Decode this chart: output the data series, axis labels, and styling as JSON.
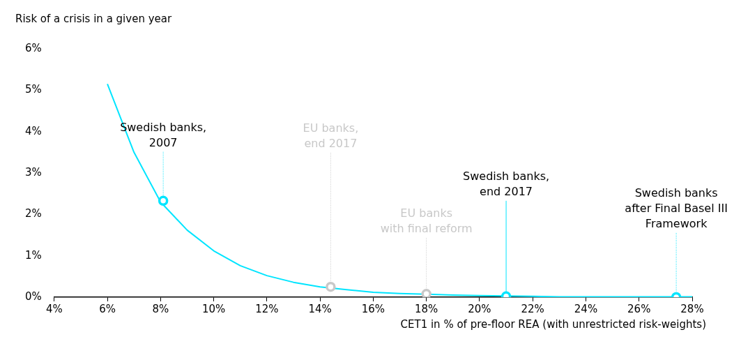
{
  "chart_data": {
    "type": "line",
    "ylabel": "Risk of a crisis in a given year",
    "xlabel": "CET1 in % of pre-floor REA (with unrestricted risk-weights)",
    "xlim": [
      4,
      28
    ],
    "xticks": [
      {
        "value": 4,
        "label": "4%"
      },
      {
        "value": 6,
        "label": "6%"
      },
      {
        "value": 8,
        "label": "8%"
      },
      {
        "value": 10,
        "label": "10%"
      },
      {
        "value": 12,
        "label": "12%"
      },
      {
        "value": 14,
        "label": "14%"
      },
      {
        "value": 16,
        "label": "16%"
      },
      {
        "value": 18,
        "label": "18%"
      },
      {
        "value": 20,
        "label": "20%"
      },
      {
        "value": 22,
        "label": "22%"
      },
      {
        "value": 24,
        "label": "24%"
      },
      {
        "value": 26,
        "label": "26%"
      },
      {
        "value": 28,
        "label": "28%"
      }
    ],
    "ylim": [
      0,
      6
    ],
    "yticks": [
      {
        "value": 0,
        "label": "0%"
      },
      {
        "value": 1,
        "label": "1%"
      },
      {
        "value": 2,
        "label": "2%"
      },
      {
        "value": 3,
        "label": "3%"
      },
      {
        "value": 4,
        "label": "4%"
      },
      {
        "value": 5,
        "label": "5%"
      },
      {
        "value": 6,
        "label": "6%"
      }
    ],
    "series": [
      {
        "type": "line",
        "color": "#00e5ff",
        "marker": "none",
        "line_style": "solid",
        "x": [
          6,
          7,
          8,
          9,
          10,
          11,
          12,
          13,
          14,
          15,
          16,
          17,
          18,
          19,
          20,
          21,
          22,
          23,
          24,
          25,
          26,
          27,
          28
        ],
        "values": [
          5.15,
          3.5,
          2.3,
          1.62,
          1.12,
          0.76,
          0.52,
          0.36,
          0.25,
          0.18,
          0.12,
          0.09,
          0.07,
          0.05,
          0.04,
          0.03,
          0.02,
          0.01,
          0.01,
          0.01,
          0.01,
          0.01,
          0.01
        ]
      },
      {
        "type": "scatter",
        "marker": "circle",
        "colors": [
          "#00e5ff",
          "#c8c8c8",
          "#c8c8c8",
          "#00e5ff",
          "#00e5ff"
        ],
        "x": [
          8.1,
          14.4,
          18.0,
          21.0,
          27.4
        ],
        "values": [
          2.33,
          0.25,
          0.08,
          0.02,
          0.0
        ]
      }
    ],
    "annotations": [
      {
        "text": "Swedish banks,\n2007",
        "x": 8.1,
        "y": 2.33
      },
      {
        "text": "EU banks,\nend 2017",
        "x": 14.4,
        "y": 0.25
      },
      {
        "text": "EU banks\nwith final reform",
        "x": 18.0,
        "y": 0.08
      },
      {
        "text": "Swedish banks,\nend 2017",
        "x": 21.0,
        "y": 0.02
      },
      {
        "text": "Swedish banks\nafter Final Basel III\nFramework",
        "x": 27.4,
        "y": 0.0
      }
    ]
  }
}
